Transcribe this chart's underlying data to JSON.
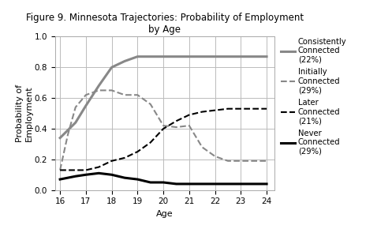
{
  "title": "Figure 9. Minnesota Trajectories: Probability of Employment\nby Age",
  "xlabel": "Age",
  "ylabel": "Probability of\nEmployment",
  "xlim": [
    15.8,
    24.3
  ],
  "ylim": [
    0.0,
    1.0
  ],
  "xticks": [
    16,
    17,
    18,
    19,
    20,
    21,
    22,
    23,
    24
  ],
  "yticks": [
    0.0,
    0.2,
    0.4,
    0.6,
    0.8,
    1.0
  ],
  "series": [
    {
      "label": "Consistently\nConnected\n(22%)",
      "x": [
        16,
        16.3,
        16.6,
        17,
        17.5,
        18,
        18.5,
        19,
        19.5,
        20,
        20.5,
        21,
        21.5,
        22,
        22.5,
        23,
        23.5,
        24
      ],
      "y": [
        0.34,
        0.39,
        0.44,
        0.55,
        0.68,
        0.8,
        0.84,
        0.87,
        0.87,
        0.87,
        0.87,
        0.87,
        0.87,
        0.87,
        0.87,
        0.87,
        0.87,
        0.87
      ],
      "color": "#888888",
      "linewidth": 2.2,
      "linestyle": "solid"
    },
    {
      "label": "Initially\nConnected\n(29%)",
      "x": [
        16,
        16.3,
        16.6,
        17,
        17.5,
        18,
        18.5,
        19,
        19.5,
        20,
        20.5,
        21,
        21.5,
        22,
        22.5,
        23,
        23.5,
        24
      ],
      "y": [
        0.13,
        0.36,
        0.54,
        0.62,
        0.65,
        0.65,
        0.62,
        0.62,
        0.56,
        0.42,
        0.41,
        0.42,
        0.28,
        0.22,
        0.19,
        0.19,
        0.19,
        0.19
      ],
      "color": "#888888",
      "linewidth": 1.5,
      "linestyle": "dashed"
    },
    {
      "label": "Later\nConnected\n(21%)",
      "x": [
        16,
        16.3,
        16.6,
        17,
        17.5,
        18,
        18.5,
        19,
        19.5,
        20,
        20.5,
        21,
        21.5,
        22,
        22.5,
        23,
        23.5,
        24
      ],
      "y": [
        0.13,
        0.13,
        0.13,
        0.13,
        0.15,
        0.19,
        0.21,
        0.25,
        0.31,
        0.4,
        0.45,
        0.49,
        0.51,
        0.52,
        0.53,
        0.53,
        0.53,
        0.53
      ],
      "color": "#000000",
      "linewidth": 1.5,
      "linestyle": "dashed"
    },
    {
      "label": "Never\nConnected\n(29%)",
      "x": [
        16,
        16.3,
        16.6,
        17,
        17.5,
        18,
        18.5,
        19,
        19.5,
        20,
        20.5,
        21,
        21.5,
        22,
        22.5,
        23,
        23.5,
        24
      ],
      "y": [
        0.07,
        0.08,
        0.09,
        0.1,
        0.11,
        0.1,
        0.08,
        0.07,
        0.05,
        0.05,
        0.04,
        0.04,
        0.04,
        0.04,
        0.04,
        0.04,
        0.04,
        0.04
      ],
      "color": "#000000",
      "linewidth": 2.2,
      "linestyle": "solid"
    }
  ],
  "background_color": "#ffffff",
  "grid_color": "#bbbbbb",
  "title_fontsize": 8.5,
  "axis_label_fontsize": 8,
  "tick_fontsize": 7.5,
  "legend_fontsize": 7.2,
  "legend_labelspacing": 0.55,
  "legend_handlelength": 1.8
}
